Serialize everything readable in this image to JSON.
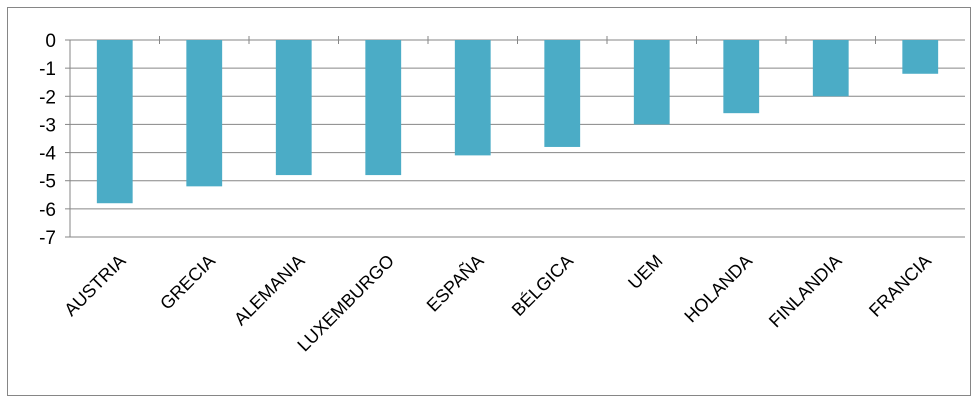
{
  "chart_data": {
    "type": "bar",
    "title": "",
    "xlabel": "",
    "ylabel": "",
    "categories": [
      "AUSTRIA",
      "GRECIA",
      "ALEMANIA",
      "LUXEMBURGO",
      "ESPAÑA",
      "BÉLGICA",
      "UEM",
      "HOLANDA",
      "FINLANDIA",
      "FRANCIA"
    ],
    "values": [
      -5.8,
      -5.2,
      -4.8,
      -4.8,
      -4.1,
      -3.8,
      -3.0,
      -2.6,
      -2.0,
      -1.2
    ],
    "ylim": [
      -7,
      0
    ],
    "yticks": [
      0,
      -1,
      -2,
      -3,
      -4,
      -5,
      -6,
      -7
    ],
    "grid": true,
    "legend": "none",
    "colors": {
      "bar": "#4BACC6",
      "grid": "#868686",
      "axis": "#868686"
    }
  }
}
